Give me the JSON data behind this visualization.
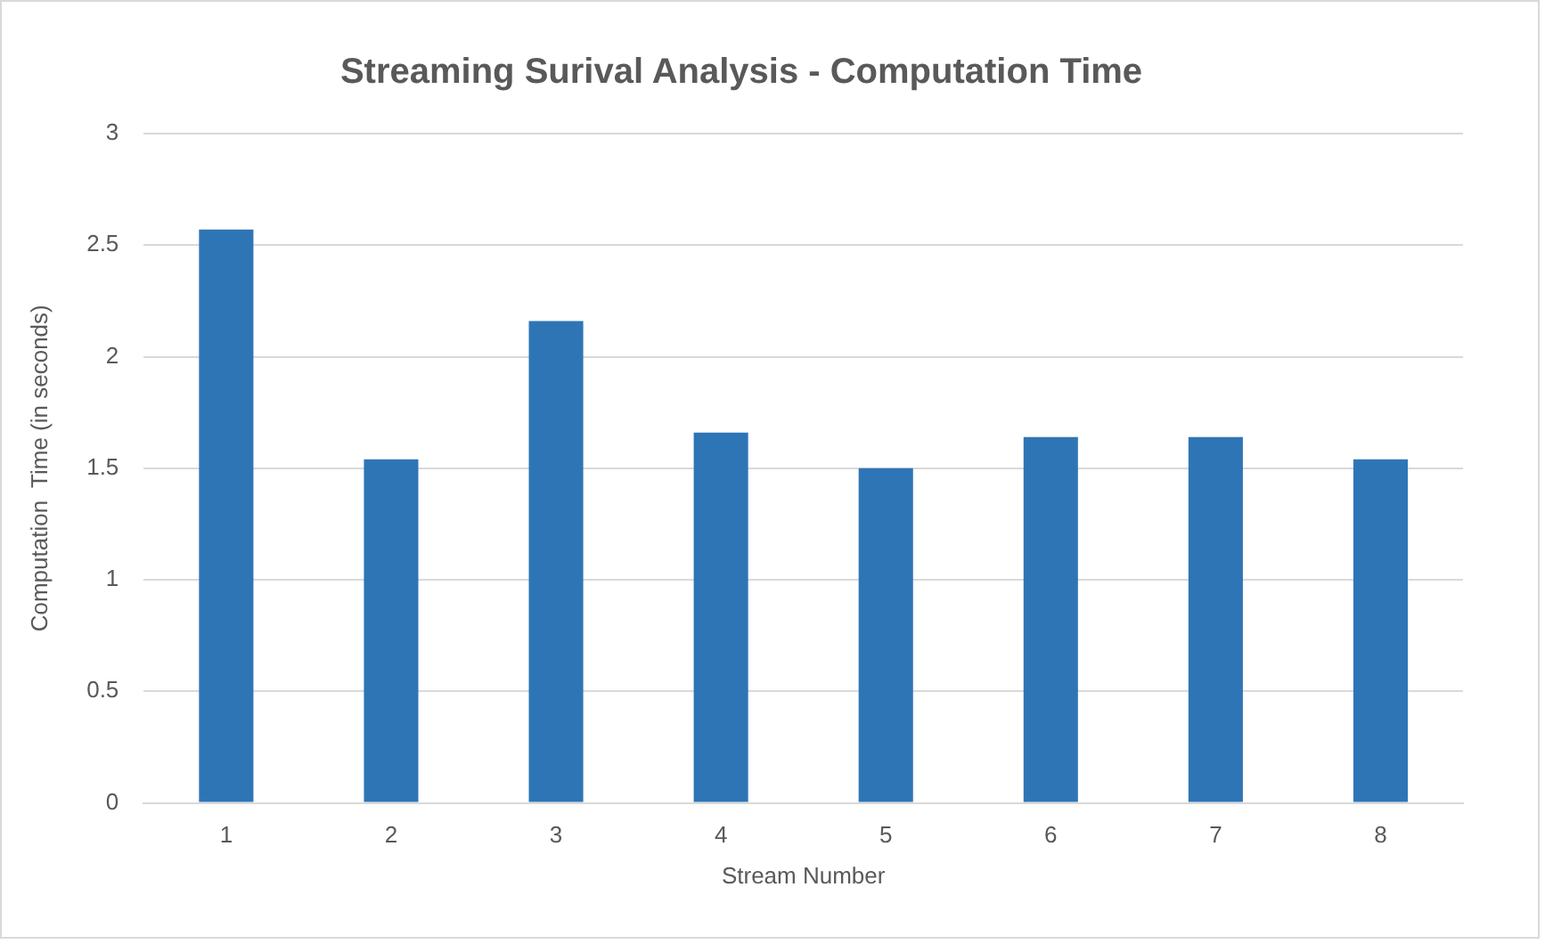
{
  "chart_data": {
    "type": "bar",
    "title": "Streaming Surival Analysis - Computation Time",
    "xlabel": "Stream Number",
    "ylabel": "Computation  Time (in seconds)",
    "categories": [
      "1",
      "2",
      "3",
      "4",
      "5",
      "6",
      "7",
      "8"
    ],
    "values": [
      2.57,
      1.54,
      2.16,
      1.66,
      1.5,
      1.64,
      1.64,
      1.54
    ],
    "color": "#2e75b6",
    "ylim": [
      0,
      3
    ],
    "yticks": [
      0,
      0.5,
      1,
      1.5,
      2,
      2.5,
      3
    ],
    "grid": "y"
  }
}
